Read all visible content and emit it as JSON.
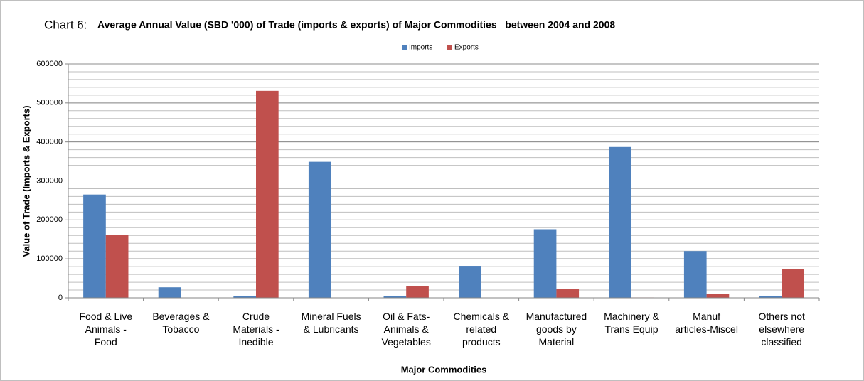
{
  "chart_data": {
    "type": "bar",
    "chart_label": "Chart 6:",
    "title": "Average Annual Value (SBD '000) of Trade (imports & exports) of Major Commodities   between 2004 and 2008",
    "x_label": "Major Commodities",
    "y_label": "Value of Trade (Imports & Exports)",
    "categories": [
      "Food & Live\nAnimals -\nFood",
      "Beverages &\nTobacco",
      "Crude\nMaterials -\nInedible",
      "Mineral Fuels\n& Lubricants",
      "Oil & Fats-\nAnimals &\nVegetables",
      "Chemicals &\nrelated\nproducts",
      "Manufactured\ngoods by\nMaterial",
      "Machinery &\nTrans Equip",
      "Manuf\narticles-Miscel",
      "Others not\nelsewhere\nclassified"
    ],
    "series": [
      {
        "name": "Imports",
        "color": "#4f81bd",
        "values": [
          265000,
          27000,
          5000,
          349000,
          5000,
          82000,
          176000,
          387000,
          120000,
          4000
        ]
      },
      {
        "name": "Exports",
        "color": "#c0504d",
        "values": [
          162000,
          500,
          531000,
          500,
          31000,
          500,
          23000,
          1000,
          10000,
          74000
        ]
      }
    ],
    "ylim": [
      0,
      600000
    ],
    "yticks": [
      0,
      100000,
      200000,
      300000,
      400000,
      500000,
      600000
    ],
    "minor_grid_step": 20000,
    "grid": true,
    "legend": "top"
  }
}
